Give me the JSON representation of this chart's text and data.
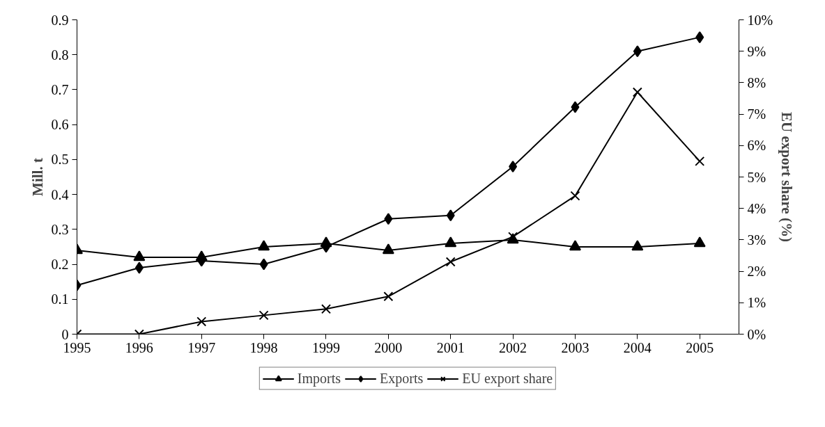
{
  "chart_data": {
    "type": "line",
    "x": [
      1995,
      1996,
      1997,
      1998,
      1999,
      2000,
      2001,
      2002,
      2003,
      2004,
      2005
    ],
    "xlim": [
      1995,
      2005.63
    ],
    "xticks": [
      1995,
      1996,
      1997,
      1998,
      1999,
      2000,
      2001,
      2002,
      2003,
      2004,
      2005
    ],
    "ylim": [
      0,
      0.9
    ],
    "yticks": [
      0,
      0.1,
      0.2,
      0.3,
      0.4,
      0.5,
      0.6,
      0.7,
      0.8,
      0.9
    ],
    "y2lim": [
      0,
      10
    ],
    "y2ticks": [
      {
        "value": 0,
        "label": "0%"
      },
      {
        "value": 1,
        "label": "1%"
      },
      {
        "value": 2,
        "label": "2%"
      },
      {
        "value": 3,
        "label": "3%"
      },
      {
        "value": 4,
        "label": "4%"
      },
      {
        "value": 5,
        "label": "5%"
      },
      {
        "value": 6,
        "label": "6%"
      },
      {
        "value": 7,
        "label": "7%"
      },
      {
        "value": 8,
        "label": "8%"
      },
      {
        "value": 9,
        "label": "9%"
      },
      {
        "value": 10,
        "label": "10%"
      }
    ],
    "ylabel": "Mill. t",
    "y2label": "EU export share (%)",
    "grid": false,
    "legend": "bottom",
    "line_style": "solid",
    "series": [
      {
        "name": "Imports",
        "color": "#000000",
        "marker": "triangle",
        "values": [
          0.24,
          0.22,
          0.22,
          0.25,
          0.26,
          0.24,
          0.26,
          0.27,
          0.25,
          0.25,
          0.26
        ]
      },
      {
        "name": "Exports",
        "color": "#000000",
        "marker": "diamond",
        "values": [
          0.14,
          0.19,
          0.21,
          0.2,
          0.25,
          0.33,
          0.34,
          0.48,
          0.65,
          0.81,
          0.85
        ]
      },
      {
        "name": "EU export share",
        "color": "#000000",
        "marker": "cross",
        "axis": "y2",
        "values": [
          0,
          0,
          0.4,
          0.6,
          0.8,
          1.2,
          2.3,
          3.1,
          4.4,
          7.7,
          5.5
        ]
      }
    ]
  }
}
